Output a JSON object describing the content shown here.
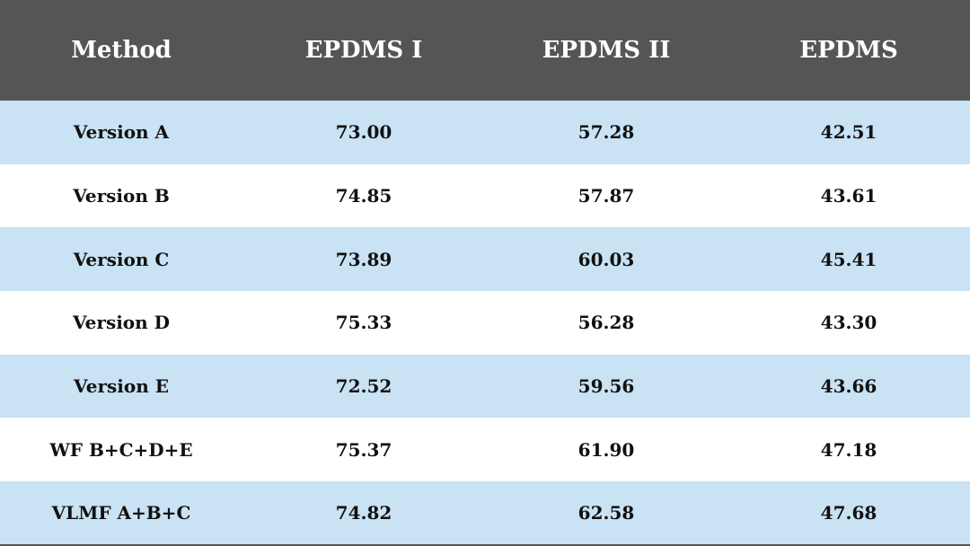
{
  "table": {
    "header": [
      "Method",
      "EPDMS I",
      "EPDMS II",
      "EPDMS"
    ],
    "rows": [
      [
        "Version A",
        "73.00",
        "57.28",
        "42.51"
      ],
      [
        "Version B",
        "74.85",
        "57.87",
        "43.61"
      ],
      [
        "Version C",
        "73.89",
        "60.03",
        "45.41"
      ],
      [
        "Version D",
        "75.33",
        "56.28",
        "43.30"
      ],
      [
        "Version E",
        "72.52",
        "59.56",
        "43.66"
      ],
      [
        "WF B+C+D+E",
        "75.37",
        "61.90",
        "47.18"
      ],
      [
        "VLMF A+B+C",
        "74.82",
        "62.58",
        "47.68"
      ]
    ]
  }
}
